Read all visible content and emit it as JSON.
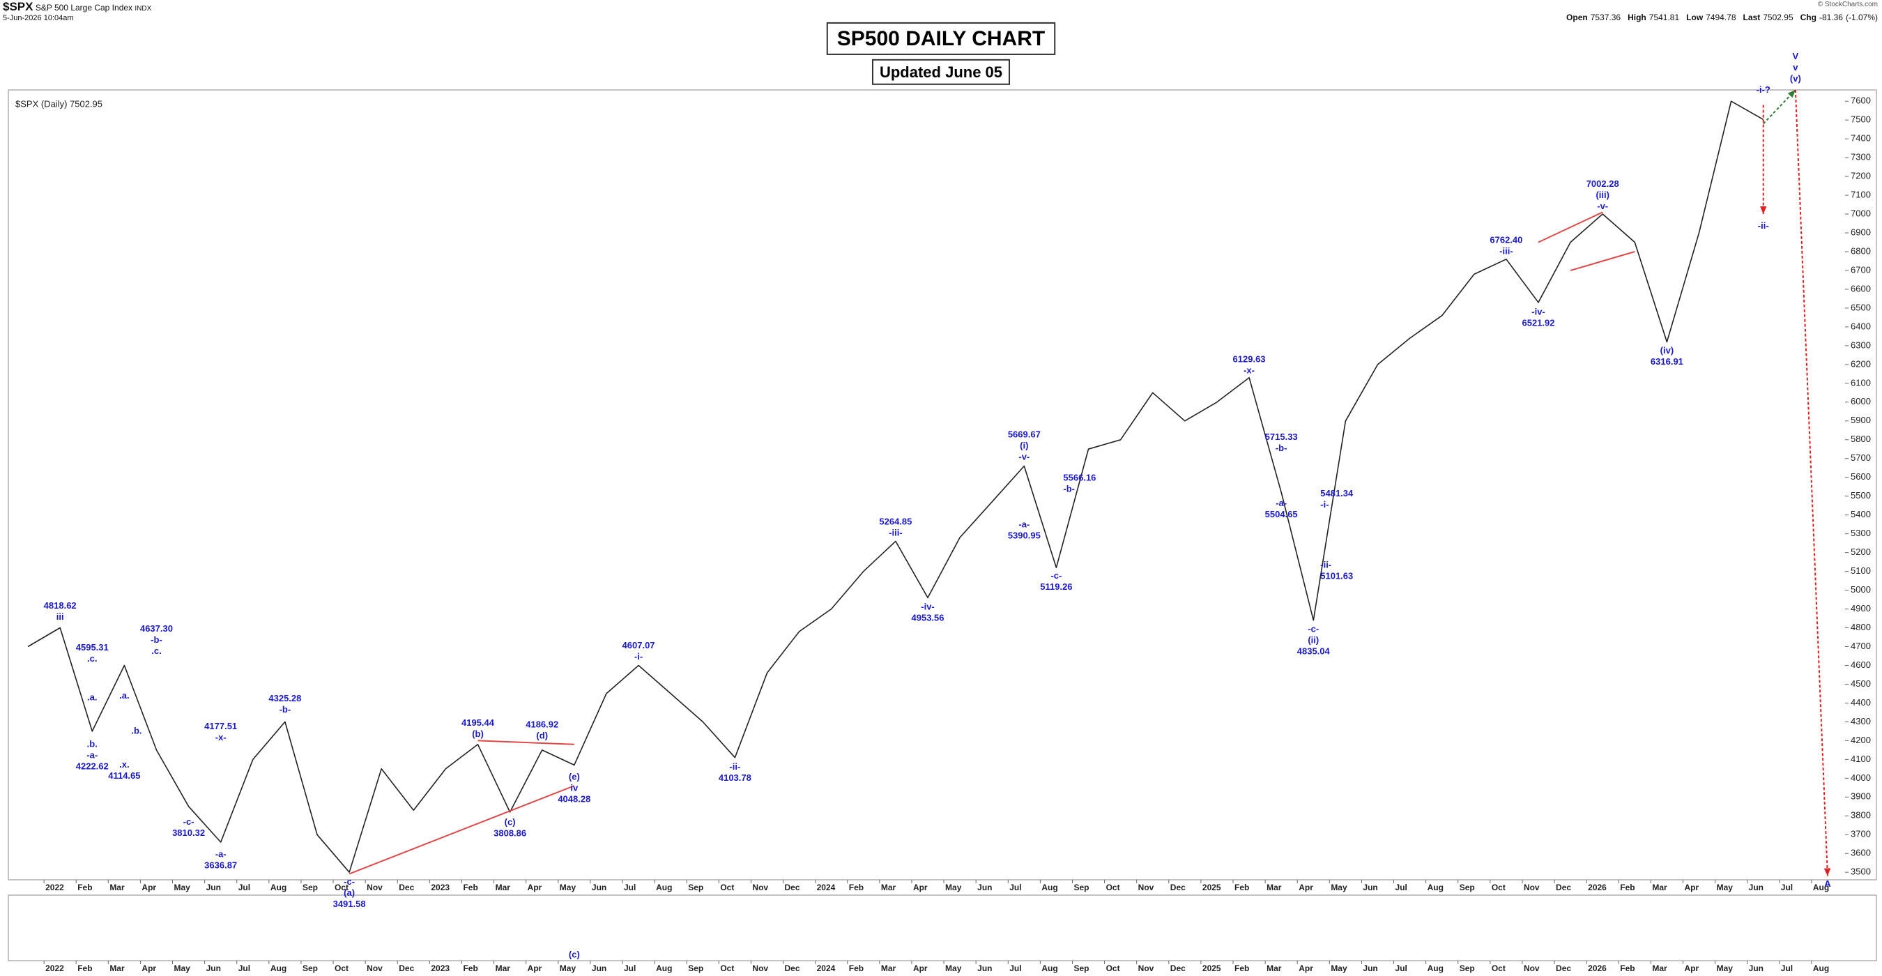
{
  "header": {
    "symbol": "$SPX",
    "name": "S&P 500 Large Cap Index",
    "exchange": "INDX",
    "timestamp": "5-Jun-2026 10:04am",
    "credit": "© StockCharts.com",
    "quote": {
      "items": [
        {
          "label": "Open",
          "value": 7537.36
        },
        {
          "label": "High",
          "value": 7541.81
        },
        {
          "label": "Low",
          "value": 7494.78
        },
        {
          "label": "Last",
          "value": 7502.95
        },
        {
          "label": "Chg",
          "value": -81.36
        }
      ],
      "change_pct": {
        "value": -1.07,
        "label": "(-1.07%)"
      }
    }
  },
  "chart_data": {
    "type": "line",
    "title": "SP500 DAILY CHART",
    "subtitle": "Updated June 05",
    "xlim": [
      "2021-12",
      "2026-08"
    ],
    "ylim": [
      3460,
      7660
    ],
    "yticks": [
      3500,
      3600,
      3700,
      3800,
      3900,
      4000,
      4100,
      4200,
      4300,
      4400,
      4500,
      4600,
      4700,
      4800,
      4900,
      5000,
      5100,
      5200,
      5300,
      5400,
      5500,
      5600,
      5700,
      5800,
      5900,
      6000,
      6100,
      6200,
      6300,
      6400,
      6500,
      6600,
      6700,
      6800,
      6900,
      7000,
      7100,
      7200,
      7300,
      7400,
      7500,
      7600
    ],
    "xticks": [
      {
        "value": "2022-01",
        "label": "2022"
      },
      {
        "value": "2022-02",
        "label": "Feb"
      },
      {
        "value": "2022-03",
        "label": "Mar"
      },
      {
        "value": "2022-04",
        "label": "Apr"
      },
      {
        "value": "2022-05",
        "label": "May"
      },
      {
        "value": "2022-06",
        "label": "Jun"
      },
      {
        "value": "2022-07",
        "label": "Jul"
      },
      {
        "value": "2022-08",
        "label": "Aug"
      },
      {
        "value": "2022-09",
        "label": "Sep"
      },
      {
        "value": "2022-10",
        "label": "Oct"
      },
      {
        "value": "2022-11",
        "label": "Nov"
      },
      {
        "value": "2022-12",
        "label": "Dec"
      },
      {
        "value": "2023-01",
        "label": "2023"
      },
      {
        "value": "2023-02",
        "label": "Feb"
      },
      {
        "value": "2023-03",
        "label": "Mar"
      },
      {
        "value": "2023-04",
        "label": "Apr"
      },
      {
        "value": "2023-05",
        "label": "May"
      },
      {
        "value": "2023-06",
        "label": "Jun"
      },
      {
        "value": "2023-07",
        "label": "Jul"
      },
      {
        "value": "2023-08",
        "label": "Aug"
      },
      {
        "value": "2023-09",
        "label": "Sep"
      },
      {
        "value": "2023-10",
        "label": "Oct"
      },
      {
        "value": "2023-11",
        "label": "Nov"
      },
      {
        "value": "2023-12",
        "label": "Dec"
      },
      {
        "value": "2024-01",
        "label": "2024"
      },
      {
        "value": "2024-02",
        "label": "Feb"
      },
      {
        "value": "2024-03",
        "label": "Mar"
      },
      {
        "value": "2024-04",
        "label": "Apr"
      },
      {
        "value": "2024-05",
        "label": "May"
      },
      {
        "value": "2024-06",
        "label": "Jun"
      },
      {
        "value": "2024-07",
        "label": "Jul"
      },
      {
        "value": "2024-08",
        "label": "Aug"
      },
      {
        "value": "2024-09",
        "label": "Sep"
      },
      {
        "value": "2024-10",
        "label": "Oct"
      },
      {
        "value": "2024-11",
        "label": "Nov"
      },
      {
        "value": "2024-12",
        "label": "Dec"
      },
      {
        "value": "2025-01",
        "label": "2025"
      },
      {
        "value": "2025-02",
        "label": "Feb"
      },
      {
        "value": "2025-03",
        "label": "Mar"
      },
      {
        "value": "2025-04",
        "label": "Apr"
      },
      {
        "value": "2025-05",
        "label": "May"
      },
      {
        "value": "2025-06",
        "label": "Jun"
      },
      {
        "value": "2025-07",
        "label": "Jul"
      },
      {
        "value": "2025-08",
        "label": "Aug"
      },
      {
        "value": "2025-09",
        "label": "Sep"
      },
      {
        "value": "2025-10",
        "label": "Oct"
      },
      {
        "value": "2025-11",
        "label": "Nov"
      },
      {
        "value": "2025-12",
        "label": "Dec"
      },
      {
        "value": "2026-01",
        "label": "2026"
      },
      {
        "value": "2026-02",
        "label": "Feb"
      },
      {
        "value": "2026-03",
        "label": "Mar"
      },
      {
        "value": "2026-04",
        "label": "Apr"
      },
      {
        "value": "2026-05",
        "label": "May"
      },
      {
        "value": "2026-06",
        "label": "Jun"
      },
      {
        "value": "2026-07",
        "label": "Jul"
      },
      {
        "value": "2026-08",
        "label": "Aug"
      }
    ],
    "x": [
      "2021-12",
      "2022-01",
      "2022-02",
      "2022-03",
      "2022-04",
      "2022-05",
      "2022-06",
      "2022-07",
      "2022-08",
      "2022-09",
      "2022-10",
      "2022-11",
      "2022-12",
      "2023-01",
      "2023-02",
      "2023-03",
      "2023-04",
      "2023-05",
      "2023-06",
      "2023-07",
      "2023-08",
      "2023-09",
      "2023-10",
      "2023-11",
      "2023-12",
      "2024-01",
      "2024-02",
      "2024-03",
      "2024-04",
      "2024-05",
      "2024-06",
      "2024-07",
      "2024-08",
      "2024-09",
      "2024-10",
      "2024-11",
      "2024-12",
      "2025-01",
      "2025-02",
      "2025-03",
      "2025-04",
      "2025-05",
      "2025-06",
      "2025-07",
      "2025-08",
      "2025-09",
      "2025-10",
      "2025-11",
      "2025-12",
      "2026-01",
      "2026-02",
      "2026-03",
      "2026-04",
      "2026-05",
      "2026-06"
    ],
    "series": [
      {
        "name": "$SPX (Daily) 7502.95",
        "color": "#222222",
        "values": [
          4700,
          4800,
          4250,
          4600,
          4150,
          3850,
          3660,
          4100,
          4300,
          3700,
          3500,
          4050,
          3830,
          4050,
          4180,
          3820,
          4150,
          4070,
          4450,
          4600,
          4450,
          4300,
          4110,
          4560,
          4780,
          4900,
          5100,
          5260,
          4960,
          5280,
          5470,
          5660,
          5120,
          5750,
          5800,
          6050,
          5900,
          6000,
          6130,
          5520,
          4840,
          5900,
          6200,
          6340,
          6460,
          6680,
          6760,
          6530,
          6850,
          7000,
          6850,
          6320,
          6900,
          7600,
          7503
        ]
      }
    ],
    "annotation_color": "#1a1acc",
    "annotations": [
      {
        "x": "2022-01",
        "y": 4818.62,
        "texts": [
          "4818.62",
          "iii"
        ],
        "pos": "above"
      },
      {
        "x": "2022-02",
        "y": 4595.31,
        "texts": [
          "4595.31",
          ".c."
        ],
        "pos": "above"
      },
      {
        "x": "2022-02",
        "y": 4390,
        "texts": [
          ".a."
        ],
        "pos": "above"
      },
      {
        "x": "2022-02",
        "y": 4222.62,
        "texts": [
          ".b.",
          "-a-",
          "4222.62"
        ],
        "pos": "below"
      },
      {
        "x": "2022-03",
        "y": 4400,
        "texts": [
          ".a."
        ],
        "pos": "above"
      },
      {
        "x": "2022-03",
        "y": 4250,
        "texts": [
          ".b."
        ],
        "pos": "right"
      },
      {
        "x": "2022-03",
        "y": 4114.65,
        "texts": [
          ".x.",
          "4114.65"
        ],
        "pos": "below"
      },
      {
        "x": "2022-04",
        "y": 4637.3,
        "texts": [
          "4637.30",
          "-b-",
          ".c."
        ],
        "pos": "above"
      },
      {
        "x": "2022-05",
        "y": 3810.32,
        "texts": [
          "-c-",
          "3810.32"
        ],
        "pos": "below"
      },
      {
        "x": "2022-06",
        "y": 4177.51,
        "texts": [
          "4177.51",
          "-x-"
        ],
        "pos": "above"
      },
      {
        "x": "2022-06",
        "y": 3636.87,
        "texts": [
          "-a-",
          "3636.87"
        ],
        "pos": "below"
      },
      {
        "x": "2022-08",
        "y": 4325.28,
        "texts": [
          "4325.28",
          "-b-"
        ],
        "pos": "above"
      },
      {
        "x": "2022-10",
        "y": 3491.58,
        "texts": [
          "-c-",
          "(a)",
          "3491.58"
        ],
        "pos": "below"
      },
      {
        "x": "2023-02",
        "y": 4195.44,
        "texts": [
          "4195.44",
          "(b)"
        ],
        "pos": "above"
      },
      {
        "x": "2023-03",
        "y": 3808.86,
        "texts": [
          "(c)",
          "3808.86"
        ],
        "pos": "below"
      },
      {
        "x": "2023-04",
        "y": 4186.92,
        "texts": [
          "4186.92",
          "(d)"
        ],
        "pos": "above"
      },
      {
        "x": "2023-05",
        "y": 4048.28,
        "texts": [
          "(e)",
          "iv",
          "4048.28"
        ],
        "pos": "below"
      },
      {
        "x": "2023-07",
        "y": 4607.07,
        "texts": [
          "4607.07",
          "-i-"
        ],
        "pos": "above"
      },
      {
        "x": "2023-10",
        "y": 4103.78,
        "texts": [
          "-ii-",
          "4103.78"
        ],
        "pos": "below"
      },
      {
        "x": "2024-03",
        "y": 5264.85,
        "texts": [
          "5264.85",
          "-iii-"
        ],
        "pos": "above"
      },
      {
        "x": "2024-04",
        "y": 4953.56,
        "texts": [
          "-iv-",
          "4953.56"
        ],
        "pos": "below"
      },
      {
        "x": "2024-07",
        "y": 5669.67,
        "texts": [
          "5669.67",
          "(i)",
          "-v-"
        ],
        "pos": "above"
      },
      {
        "x": "2024-08",
        "y": 5566.16,
        "texts": [
          "5566.16",
          "-b-"
        ],
        "pos": "right"
      },
      {
        "x": "2024-07",
        "y": 5390.95,
        "texts": [
          "-a-",
          "5390.95"
        ],
        "pos": "below"
      },
      {
        "x": "2024-08",
        "y": 5119.26,
        "texts": [
          "-c-",
          "5119.26"
        ],
        "pos": "below"
      },
      {
        "x": "2025-02",
        "y": 6129.63,
        "texts": [
          "6129.63",
          "-x-"
        ],
        "pos": "above"
      },
      {
        "x": "2025-03",
        "y": 5715.33,
        "texts": [
          "5715.33",
          "-b-"
        ],
        "pos": "above"
      },
      {
        "x": "2025-03",
        "y": 5504.65,
        "texts": [
          "-a-",
          "5504.65"
        ],
        "pos": "below"
      },
      {
        "x": "2025-04",
        "y": 5481.34,
        "texts": [
          "5481.34",
          "-i-"
        ],
        "pos": "right"
      },
      {
        "x": "2025-04",
        "y": 5101.63,
        "texts": [
          "-ii-",
          "5101.63"
        ],
        "pos": "right"
      },
      {
        "x": "2025-04",
        "y": 4835.04,
        "texts": [
          "-c-",
          "(ii)",
          "4835.04"
        ],
        "pos": "below"
      },
      {
        "x": "2025-10",
        "y": 6762.4,
        "texts": [
          "6762.40",
          "-iii-"
        ],
        "pos": "above"
      },
      {
        "x": "2025-11",
        "y": 6521.92,
        "texts": [
          "-iv-",
          "6521.92"
        ],
        "pos": "below"
      },
      {
        "x": "2026-01",
        "y": 7002.28,
        "texts": [
          "7002.28",
          "(iii)",
          "-v-"
        ],
        "pos": "above"
      },
      {
        "x": "2026-03",
        "y": 6316.91,
        "texts": [
          "(iv)",
          "6316.91"
        ],
        "pos": "below"
      },
      {
        "x": "2026-06",
        "y": 7620,
        "texts": [
          "-i-?"
        ],
        "pos": "above"
      },
      {
        "x": "2026-06",
        "y": 6980,
        "texts": [
          "-ii-"
        ],
        "pos": "below"
      },
      {
        "x": "2026-07",
        "y": 7680,
        "texts": [
          "V",
          "v",
          "(v)"
        ],
        "pos": "above"
      },
      {
        "x": "2026-08",
        "y": 3480,
        "texts": [
          "A"
        ],
        "pos": "below"
      }
    ],
    "lower_panel_labels": [
      {
        "x": "2023-05",
        "texts": [
          "(c)"
        ]
      }
    ],
    "trend_lines": [
      {
        "x": [
          "2022-10",
          "2023-05"
        ],
        "values": [
          3491.58,
          3960
        ],
        "color": "#e04848"
      },
      {
        "x": [
          "2023-02",
          "2023-05"
        ],
        "values": [
          4200,
          4180
        ],
        "color": "#e04848"
      },
      {
        "x": [
          "2025-11",
          "2026-01"
        ],
        "values": [
          6850,
          7010
        ],
        "color": "#e04848"
      },
      {
        "x": [
          "2025-12",
          "2026-02"
        ],
        "values": [
          6700,
          6800
        ],
        "color": "#e04848"
      }
    ],
    "projections": [
      {
        "x": [
          "2026-06",
          "2026-07"
        ],
        "values": [
          7480,
          7660
        ],
        "color": "#2e7d32"
      },
      {
        "x": [
          "2026-06",
          "2026-06"
        ],
        "values": [
          7580,
          7000
        ],
        "color": "#e02020"
      },
      {
        "x": [
          "2026-07",
          "2026-08"
        ],
        "values": [
          7660,
          3480
        ],
        "color": "#e02020"
      }
    ]
  }
}
